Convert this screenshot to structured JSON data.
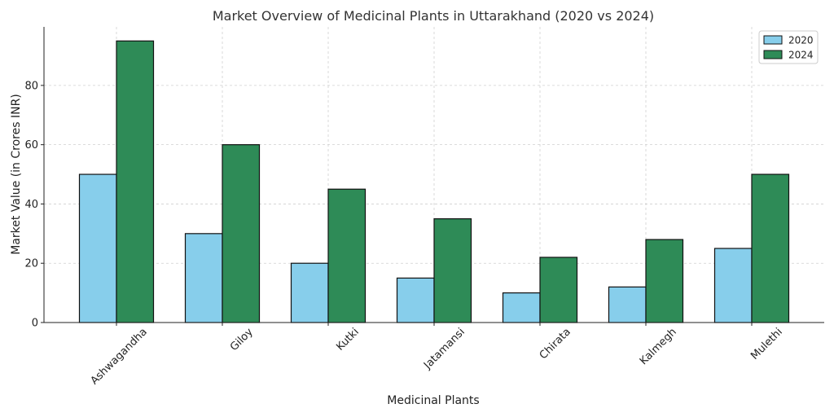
{
  "chart_data": {
    "type": "bar",
    "title": "Market Overview of Medicinal Plants in Uttarakhand (2020 vs 2024)",
    "xlabel": "Medicinal Plants",
    "ylabel": "Market Value (in Crores INR)",
    "categories": [
      "Ashwagandha",
      "Giloy",
      "Kutki",
      "Jatamansi",
      "Chirata",
      "Kalmegh",
      "Mulethi"
    ],
    "series": [
      {
        "name": "2020",
        "color": "#87CEEB",
        "values": [
          50,
          30,
          20,
          15,
          10,
          12,
          25
        ]
      },
      {
        "name": "2024",
        "color": "#2E8B57",
        "values": [
          95,
          60,
          45,
          35,
          22,
          28,
          50
        ]
      }
    ],
    "ylim": [
      0,
      99.75
    ],
    "yticks": [
      0,
      20,
      40,
      60,
      80
    ],
    "grid": true,
    "legend_position": "top-right"
  }
}
